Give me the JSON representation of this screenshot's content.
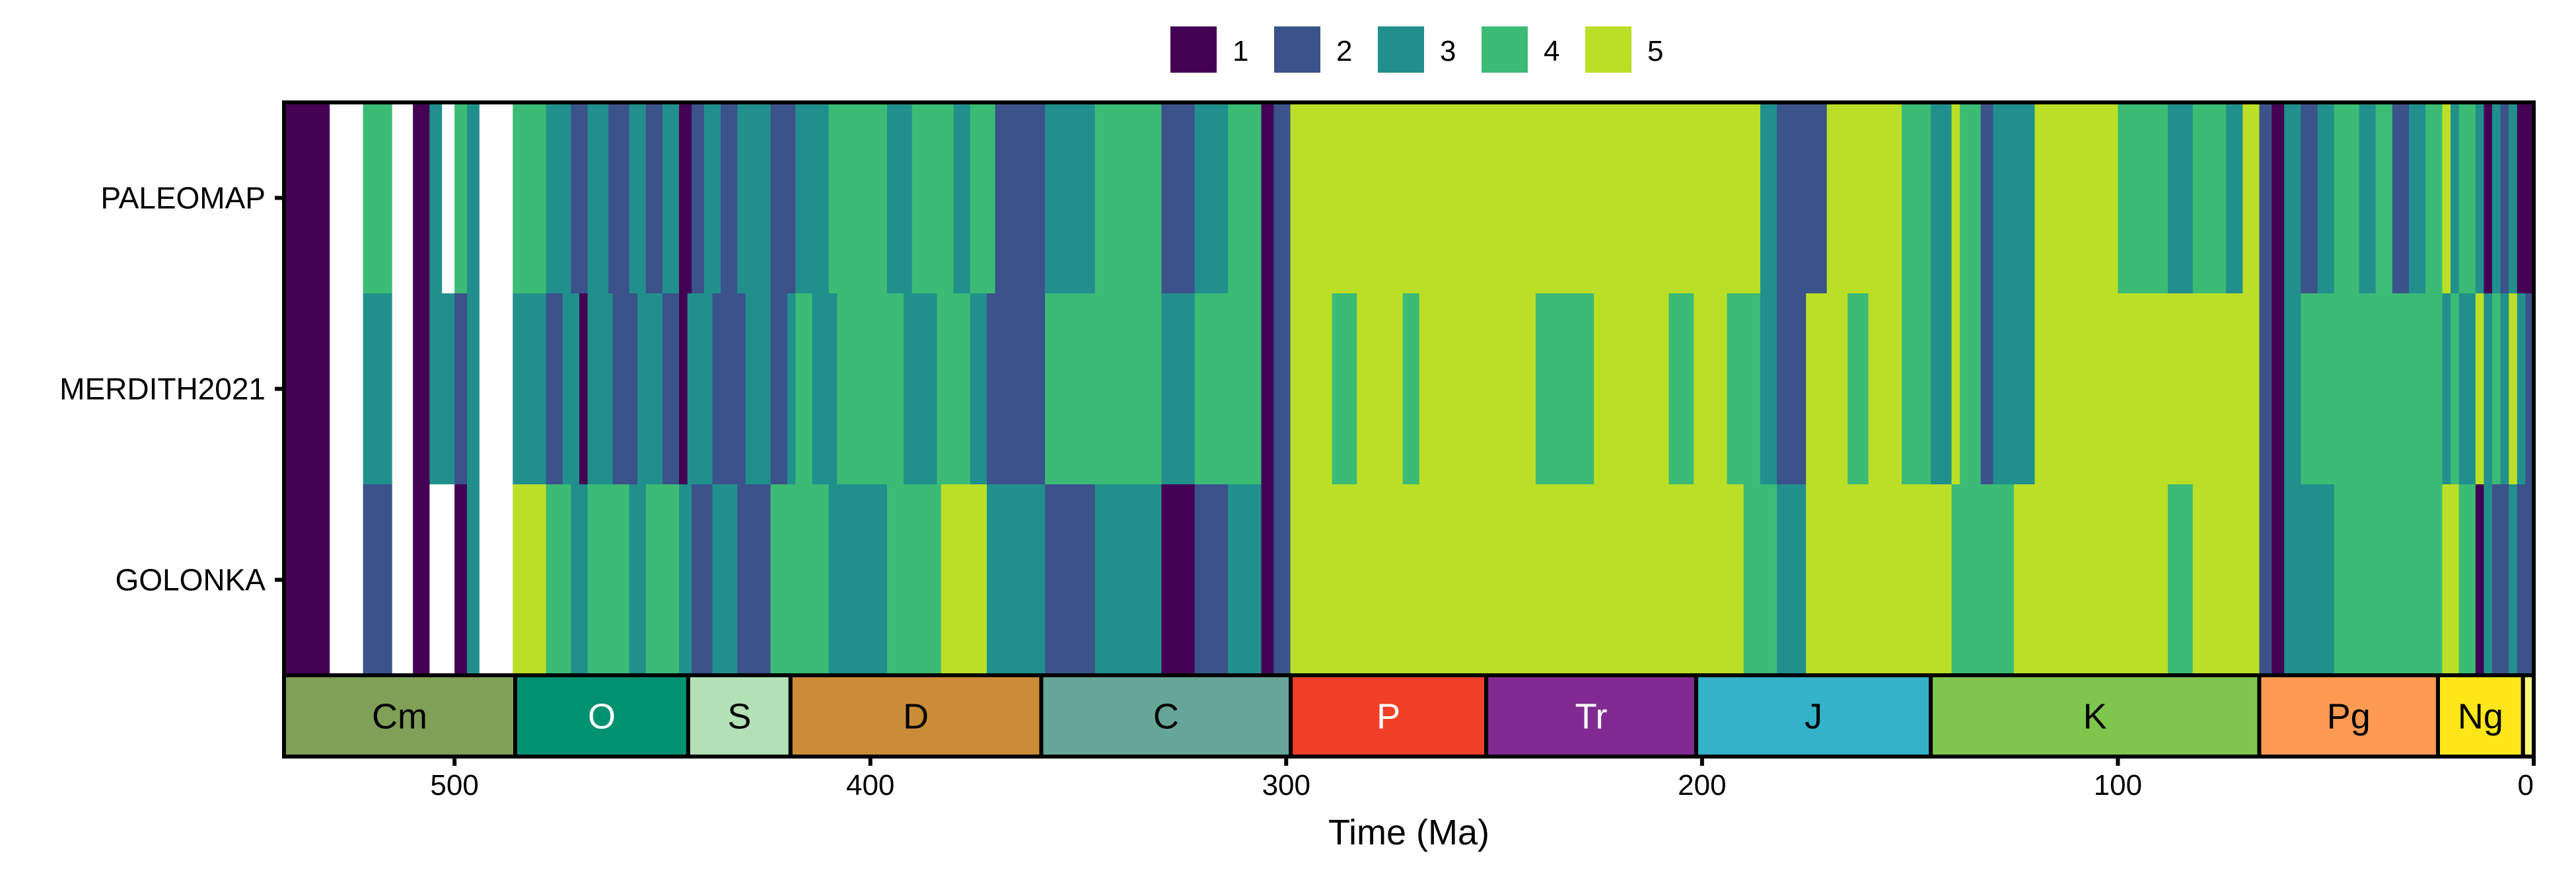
{
  "chart_data": {
    "type": "heatmap",
    "xlabel": "Time (Ma)",
    "xlim": [
      541,
      0
    ],
    "x_ticks": [
      {
        "value": 500,
        "label": "500"
      },
      {
        "value": 400,
        "label": "400"
      },
      {
        "value": 300,
        "label": "300"
      },
      {
        "value": 200,
        "label": "200"
      },
      {
        "value": 100,
        "label": "100"
      },
      {
        "value": 0,
        "label": "0"
      }
    ],
    "legend": {
      "position": "top-center",
      "items": [
        {
          "value": 1,
          "label": "1",
          "color": "#440154"
        },
        {
          "value": 2,
          "label": "2",
          "color": "#3B528B"
        },
        {
          "value": 3,
          "label": "3",
          "color": "#21908C"
        },
        {
          "value": 4,
          "label": "4",
          "color": "#3CBB75"
        },
        {
          "value": 5,
          "label": "5",
          "color": "#BBDF27"
        }
      ]
    },
    "rows": [
      "PALEOMAP",
      "MERDITH2021",
      "GOLONKA"
    ],
    "series": [
      {
        "name": "PALEOMAP",
        "segments": [
          [
            541,
            530,
            1
          ],
          [
            530,
            522,
            null
          ],
          [
            522,
            515,
            4
          ],
          [
            515,
            510,
            null
          ],
          [
            510,
            506,
            1
          ],
          [
            506,
            503,
            3
          ],
          [
            503,
            500,
            null
          ],
          [
            500,
            497,
            4
          ],
          [
            497,
            494,
            3
          ],
          [
            494,
            486,
            null
          ],
          [
            486,
            478,
            4
          ],
          [
            478,
            472,
            3
          ],
          [
            472,
            468,
            2
          ],
          [
            468,
            463,
            3
          ],
          [
            463,
            458,
            2
          ],
          [
            458,
            454,
            3
          ],
          [
            454,
            450,
            2
          ],
          [
            450,
            446,
            3
          ],
          [
            446,
            443,
            1
          ],
          [
            443,
            440,
            2
          ],
          [
            440,
            436,
            3
          ],
          [
            436,
            432,
            2
          ],
          [
            432,
            424,
            3
          ],
          [
            424,
            418,
            2
          ],
          [
            418,
            410,
            3
          ],
          [
            410,
            396,
            4
          ],
          [
            396,
            390,
            3
          ],
          [
            390,
            380,
            4
          ],
          [
            380,
            376,
            3
          ],
          [
            376,
            370,
            4
          ],
          [
            370,
            358,
            2
          ],
          [
            358,
            346,
            3
          ],
          [
            346,
            330,
            4
          ],
          [
            330,
            322,
            2
          ],
          [
            322,
            314,
            3
          ],
          [
            314,
            306,
            4
          ],
          [
            306,
            303,
            1
          ],
          [
            303,
            299,
            2
          ],
          [
            299,
            186,
            5
          ],
          [
            186,
            182,
            3
          ],
          [
            182,
            170,
            2
          ],
          [
            170,
            152,
            5
          ],
          [
            152,
            145,
            4
          ],
          [
            145,
            140,
            3
          ],
          [
            140,
            138,
            5
          ],
          [
            138,
            133,
            4
          ],
          [
            133,
            130,
            2
          ],
          [
            130,
            120,
            3
          ],
          [
            120,
            100,
            5
          ],
          [
            100,
            88,
            4
          ],
          [
            88,
            82,
            3
          ],
          [
            82,
            74,
            4
          ],
          [
            74,
            70,
            3
          ],
          [
            70,
            66,
            5
          ],
          [
            66,
            63,
            2
          ],
          [
            63,
            60,
            1
          ],
          [
            60,
            56,
            3
          ],
          [
            56,
            52,
            2
          ],
          [
            52,
            48,
            3
          ],
          [
            48,
            42,
            4
          ],
          [
            42,
            38,
            3
          ],
          [
            38,
            34,
            4
          ],
          [
            34,
            30,
            2
          ],
          [
            30,
            26,
            3
          ],
          [
            26,
            22,
            4
          ],
          [
            22,
            20,
            5
          ],
          [
            20,
            18,
            3
          ],
          [
            18,
            14,
            4
          ],
          [
            14,
            12,
            3
          ],
          [
            12,
            10,
            1
          ],
          [
            10,
            8,
            3
          ],
          [
            8,
            6,
            2
          ],
          [
            6,
            4,
            3
          ],
          [
            4,
            0,
            1
          ]
        ]
      },
      {
        "name": "MERDITH2021",
        "segments": [
          [
            541,
            530,
            1
          ],
          [
            530,
            522,
            null
          ],
          [
            522,
            515,
            3
          ],
          [
            515,
            510,
            null
          ],
          [
            510,
            506,
            1
          ],
          [
            506,
            500,
            3
          ],
          [
            500,
            497,
            2
          ],
          [
            497,
            494,
            3
          ],
          [
            494,
            486,
            null
          ],
          [
            486,
            478,
            3
          ],
          [
            478,
            474,
            2
          ],
          [
            474,
            470,
            3
          ],
          [
            470,
            468,
            1
          ],
          [
            468,
            462,
            3
          ],
          [
            462,
            456,
            2
          ],
          [
            456,
            450,
            3
          ],
          [
            450,
            446,
            2
          ],
          [
            446,
            444,
            1
          ],
          [
            444,
            438,
            3
          ],
          [
            438,
            430,
            2
          ],
          [
            430,
            424,
            3
          ],
          [
            424,
            420,
            2
          ],
          [
            420,
            418,
            3
          ],
          [
            418,
            414,
            4
          ],
          [
            414,
            408,
            3
          ],
          [
            408,
            392,
            4
          ],
          [
            392,
            384,
            3
          ],
          [
            384,
            376,
            4
          ],
          [
            376,
            372,
            3
          ],
          [
            372,
            358,
            2
          ],
          [
            358,
            346,
            4
          ],
          [
            346,
            330,
            4
          ],
          [
            330,
            322,
            3
          ],
          [
            322,
            314,
            4
          ],
          [
            314,
            306,
            4
          ],
          [
            306,
            303,
            1
          ],
          [
            303,
            299,
            2
          ],
          [
            299,
            289,
            5
          ],
          [
            289,
            283,
            4
          ],
          [
            283,
            272,
            5
          ],
          [
            272,
            268,
            4
          ],
          [
            268,
            240,
            5
          ],
          [
            240,
            226,
            4
          ],
          [
            226,
            208,
            5
          ],
          [
            208,
            202,
            4
          ],
          [
            202,
            194,
            5
          ],
          [
            194,
            186,
            4
          ],
          [
            186,
            182,
            3
          ],
          [
            182,
            175,
            2
          ],
          [
            175,
            165,
            5
          ],
          [
            165,
            160,
            4
          ],
          [
            160,
            152,
            5
          ],
          [
            152,
            145,
            4
          ],
          [
            145,
            140,
            3
          ],
          [
            140,
            138,
            5
          ],
          [
            138,
            133,
            4
          ],
          [
            133,
            130,
            2
          ],
          [
            130,
            120,
            3
          ],
          [
            120,
            108,
            5
          ],
          [
            108,
            100,
            5
          ],
          [
            100,
            90,
            5
          ],
          [
            90,
            80,
            5
          ],
          [
            80,
            72,
            5
          ],
          [
            72,
            66,
            5
          ],
          [
            66,
            63,
            2
          ],
          [
            63,
            60,
            1
          ],
          [
            60,
            56,
            3
          ],
          [
            56,
            50,
            4
          ],
          [
            50,
            40,
            4
          ],
          [
            40,
            30,
            4
          ],
          [
            30,
            22,
            4
          ],
          [
            22,
            20,
            3
          ],
          [
            20,
            18,
            4
          ],
          [
            18,
            14,
            3
          ],
          [
            14,
            12,
            5
          ],
          [
            12,
            10,
            3
          ],
          [
            10,
            8,
            4
          ],
          [
            8,
            6,
            3
          ],
          [
            6,
            4,
            5
          ],
          [
            4,
            2,
            3
          ],
          [
            2,
            0,
            2
          ]
        ]
      },
      {
        "name": "GOLONKA",
        "segments": [
          [
            541,
            530,
            1
          ],
          [
            530,
            522,
            null
          ],
          [
            522,
            515,
            2
          ],
          [
            515,
            510,
            null
          ],
          [
            510,
            506,
            1
          ],
          [
            506,
            500,
            null
          ],
          [
            500,
            497,
            1
          ],
          [
            497,
            494,
            3
          ],
          [
            494,
            486,
            null
          ],
          [
            486,
            478,
            5
          ],
          [
            478,
            472,
            4
          ],
          [
            472,
            468,
            3
          ],
          [
            468,
            458,
            4
          ],
          [
            458,
            454,
            3
          ],
          [
            454,
            446,
            4
          ],
          [
            446,
            443,
            3
          ],
          [
            443,
            438,
            2
          ],
          [
            438,
            432,
            3
          ],
          [
            432,
            424,
            2
          ],
          [
            424,
            410,
            4
          ],
          [
            410,
            396,
            3
          ],
          [
            396,
            383,
            4
          ],
          [
            383,
            372,
            5
          ],
          [
            372,
            358,
            3
          ],
          [
            358,
            346,
            2
          ],
          [
            346,
            330,
            3
          ],
          [
            330,
            322,
            1
          ],
          [
            322,
            314,
            2
          ],
          [
            314,
            306,
            3
          ],
          [
            306,
            303,
            1
          ],
          [
            303,
            299,
            2
          ],
          [
            299,
            190,
            5
          ],
          [
            190,
            182,
            4
          ],
          [
            182,
            175,
            3
          ],
          [
            175,
            160,
            5
          ],
          [
            160,
            140,
            5
          ],
          [
            140,
            125,
            4
          ],
          [
            125,
            100,
            5
          ],
          [
            100,
            88,
            5
          ],
          [
            88,
            82,
            4
          ],
          [
            82,
            74,
            5
          ],
          [
            74,
            66,
            5
          ],
          [
            66,
            63,
            2
          ],
          [
            63,
            60,
            1
          ],
          [
            60,
            56,
            3
          ],
          [
            56,
            48,
            3
          ],
          [
            48,
            40,
            4
          ],
          [
            40,
            30,
            4
          ],
          [
            30,
            22,
            4
          ],
          [
            22,
            18,
            5
          ],
          [
            18,
            14,
            4
          ],
          [
            14,
            12,
            1
          ],
          [
            12,
            10,
            3
          ],
          [
            10,
            6,
            2
          ],
          [
            6,
            4,
            3
          ],
          [
            4,
            0,
            2
          ]
        ]
      }
    ],
    "periods": [
      {
        "label": "Cm",
        "start": 541,
        "end": 485.4,
        "color": "#7FA056",
        "text_color": "#000000"
      },
      {
        "label": "O",
        "start": 485.4,
        "end": 443.8,
        "color": "#009270",
        "text_color": "#FFFFFF"
      },
      {
        "label": "S",
        "start": 443.8,
        "end": 419.2,
        "color": "#B3E1B6",
        "text_color": "#000000"
      },
      {
        "label": "D",
        "start": 419.2,
        "end": 358.9,
        "color": "#CB8C37",
        "text_color": "#000000"
      },
      {
        "label": "C",
        "start": 358.9,
        "end": 298.9,
        "color": "#67A599",
        "text_color": "#000000"
      },
      {
        "label": "P",
        "start": 298.9,
        "end": 251.9,
        "color": "#F04028",
        "text_color": "#FFFFFF"
      },
      {
        "label": "Tr",
        "start": 251.9,
        "end": 201.4,
        "color": "#812B92",
        "text_color": "#FFFFFF"
      },
      {
        "label": "J",
        "start": 201.4,
        "end": 145.0,
        "color": "#34B2C9",
        "text_color": "#000000"
      },
      {
        "label": "K",
        "start": 145.0,
        "end": 66.0,
        "color": "#7FC64E",
        "text_color": "#000000"
      },
      {
        "label": "Pg",
        "start": 66.0,
        "end": 23.03,
        "color": "#FD9A52",
        "text_color": "#000000"
      },
      {
        "label": "Ng",
        "start": 23.03,
        "end": 2.58,
        "color": "#FFE619",
        "text_color": "#000000"
      },
      {
        "label": "",
        "start": 2.58,
        "end": 0,
        "color": "#F9F97F",
        "text_color": "#000000"
      }
    ]
  }
}
